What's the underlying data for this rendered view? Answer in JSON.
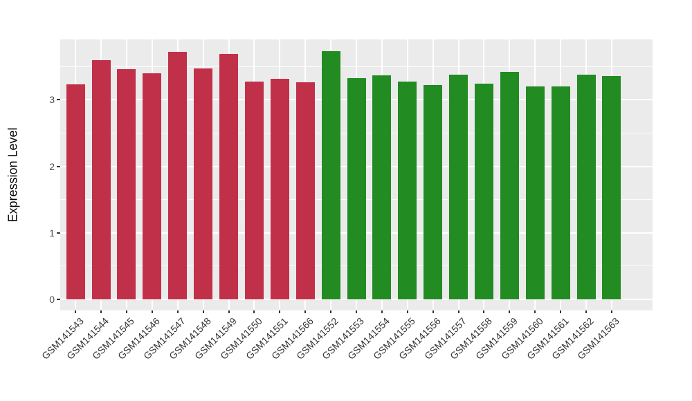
{
  "chart_data": {
    "type": "bar",
    "title": "",
    "xlabel": "",
    "ylabel": "Expression Level",
    "categories": [
      "GSM141543",
      "GSM141544",
      "GSM141545",
      "GSM141546",
      "GSM141547",
      "GSM141548",
      "GSM141549",
      "GSM141550",
      "GSM141551",
      "GSM141566",
      "GSM141552",
      "GSM141553",
      "GSM141554",
      "GSM141555",
      "GSM141556",
      "GSM141557",
      "GSM141558",
      "GSM141559",
      "GSM141560",
      "GSM141561",
      "GSM141562",
      "GSM141563"
    ],
    "values": [
      3.23,
      3.6,
      3.46,
      3.4,
      3.72,
      3.47,
      3.69,
      3.27,
      3.32,
      3.26,
      3.73,
      3.33,
      3.37,
      3.27,
      3.22,
      3.38,
      3.24,
      3.42,
      3.2,
      3.2,
      3.38,
      3.36
    ],
    "groups": [
      "red",
      "red",
      "red",
      "red",
      "red",
      "red",
      "red",
      "red",
      "red",
      "red",
      "green",
      "green",
      "green",
      "green",
      "green",
      "green",
      "green",
      "green",
      "green",
      "green",
      "green",
      "green"
    ],
    "group_colors": {
      "red": "#C13049",
      "green": "#228B22"
    },
    "yticks": [
      "0",
      "1",
      "2",
      "3"
    ],
    "ytick_values": [
      0,
      1,
      2,
      3
    ],
    "minor_tick_values": [
      0.5,
      1.5,
      2.5,
      3.5
    ],
    "ylim": [
      -0.19,
      3.92
    ],
    "panel_background": "#EBEBEB",
    "grid_color": "#FFFFFF",
    "grid": "major+minor horizontal, major vertical at categories",
    "legend": "none"
  }
}
